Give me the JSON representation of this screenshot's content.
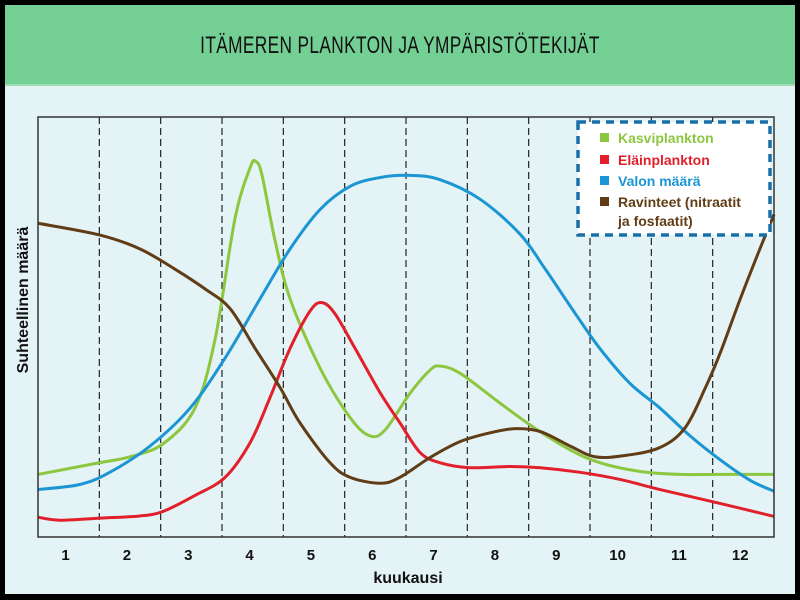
{
  "chart_data": {
    "type": "line",
    "title": "ITÄMEREN PLANKTON JA YMPÄRISTÖTEKIJÄT",
    "xlabel": "kuukausi",
    "ylabel": "Suhteellinen määrä",
    "categories": [
      "1",
      "2",
      "3",
      "4",
      "5",
      "6",
      "7",
      "8",
      "9",
      "10",
      "11",
      "12"
    ],
    "xlim": [
      0,
      12
    ],
    "ylim": [
      0,
      100
    ],
    "grid": "vertical dashed month separators",
    "legend_position": "top-right",
    "series": [
      {
        "name": "Kasviplankton",
        "color": "#8dc63f",
        "points": [
          [
            0,
            14.9
          ],
          [
            1.01,
            17.7
          ],
          [
            1.5,
            19.1
          ],
          [
            2.04,
            22.2
          ],
          [
            2.56,
            30.7
          ],
          [
            2.89,
            47.3
          ],
          [
            3.21,
            75.7
          ],
          [
            3.46,
            88.0
          ],
          [
            3.55,
            89.4
          ],
          [
            3.65,
            86.3
          ],
          [
            3.86,
            70.9
          ],
          [
            4.11,
            56.7
          ],
          [
            4.6,
            40.2
          ],
          [
            5.09,
            28.4
          ],
          [
            5.41,
            24.1
          ],
          [
            5.66,
            25.5
          ],
          [
            6.07,
            34.3
          ],
          [
            6.39,
            39.7
          ],
          [
            6.55,
            40.7
          ],
          [
            6.88,
            39.0
          ],
          [
            7.53,
            31.9
          ],
          [
            8.09,
            26.0
          ],
          [
            8.67,
            20.8
          ],
          [
            9.16,
            17.7
          ],
          [
            9.82,
            15.6
          ],
          [
            10.47,
            14.9
          ],
          [
            11.12,
            14.9
          ],
          [
            12,
            14.9
          ]
        ]
      },
      {
        "name": "Eläinplankton",
        "color": "#e2202b",
        "points": [
          [
            0,
            4.7
          ],
          [
            0.36,
            4.0
          ],
          [
            1.01,
            4.5
          ],
          [
            1.66,
            5.0
          ],
          [
            2.04,
            6.1
          ],
          [
            2.56,
            9.9
          ],
          [
            3.05,
            14.2
          ],
          [
            3.46,
            22.5
          ],
          [
            3.78,
            33.1
          ],
          [
            4.11,
            44.9
          ],
          [
            4.44,
            53.9
          ],
          [
            4.63,
            55.8
          ],
          [
            4.84,
            53.2
          ],
          [
            5.17,
            44.9
          ],
          [
            5.58,
            34.3
          ],
          [
            5.9,
            27.2
          ],
          [
            6.23,
            20.1
          ],
          [
            6.55,
            17.7
          ],
          [
            7.04,
            16.5
          ],
          [
            7.7,
            16.8
          ],
          [
            8.19,
            16.5
          ],
          [
            8.84,
            15.4
          ],
          [
            9.49,
            13.7
          ],
          [
            10.14,
            11.3
          ],
          [
            11.12,
            8.0
          ],
          [
            12,
            4.9
          ]
        ]
      },
      {
        "name": "Valon määrä",
        "color": "#1b95d3",
        "points": [
          [
            0,
            11.3
          ],
          [
            0.68,
            12.5
          ],
          [
            1.17,
            15.4
          ],
          [
            1.83,
            21.7
          ],
          [
            2.48,
            30.7
          ],
          [
            3.05,
            42.6
          ],
          [
            3.62,
            56.7
          ],
          [
            4.11,
            68.6
          ],
          [
            4.6,
            78.0
          ],
          [
            5.09,
            83.5
          ],
          [
            5.58,
            85.6
          ],
          [
            6.07,
            86.1
          ],
          [
            6.55,
            85.1
          ],
          [
            7.21,
            80.4
          ],
          [
            7.86,
            72.1
          ],
          [
            8.27,
            63.8
          ],
          [
            8.76,
            53.2
          ],
          [
            9.16,
            44.9
          ],
          [
            9.65,
            36.6
          ],
          [
            10.14,
            30.7
          ],
          [
            10.63,
            24.1
          ],
          [
            11.12,
            18.4
          ],
          [
            11.61,
            13.5
          ],
          [
            12,
            10.9
          ]
        ]
      },
      {
        "name": "Ravinteet (nitraatit ja fosfaatit)",
        "color": "#603d16",
        "points": [
          [
            0,
            74.7
          ],
          [
            1.01,
            71.9
          ],
          [
            1.66,
            68.6
          ],
          [
            2.23,
            63.8
          ],
          [
            2.72,
            59.1
          ],
          [
            3.13,
            54.4
          ],
          [
            3.54,
            44.9
          ],
          [
            3.95,
            35.5
          ],
          [
            4.27,
            27.2
          ],
          [
            4.76,
            17.7
          ],
          [
            5.09,
            14.2
          ],
          [
            5.58,
            12.8
          ],
          [
            5.9,
            14.2
          ],
          [
            6.39,
            18.9
          ],
          [
            6.88,
            22.7
          ],
          [
            7.37,
            24.8
          ],
          [
            7.78,
            25.8
          ],
          [
            8.19,
            25.1
          ],
          [
            8.67,
            21.7
          ],
          [
            9.08,
            19.1
          ],
          [
            9.57,
            19.4
          ],
          [
            10.14,
            21.3
          ],
          [
            10.55,
            26.0
          ],
          [
            10.88,
            35.5
          ],
          [
            11.12,
            43.7
          ],
          [
            11.45,
            56.7
          ],
          [
            11.77,
            68.6
          ],
          [
            12,
            76.8
          ]
        ]
      }
    ]
  },
  "legend": {
    "items": [
      "Kasviplankton",
      "Eläinplankton",
      "Valon määrä",
      "Ravinteet (nitraatit",
      "ja fosfaatit)"
    ]
  }
}
